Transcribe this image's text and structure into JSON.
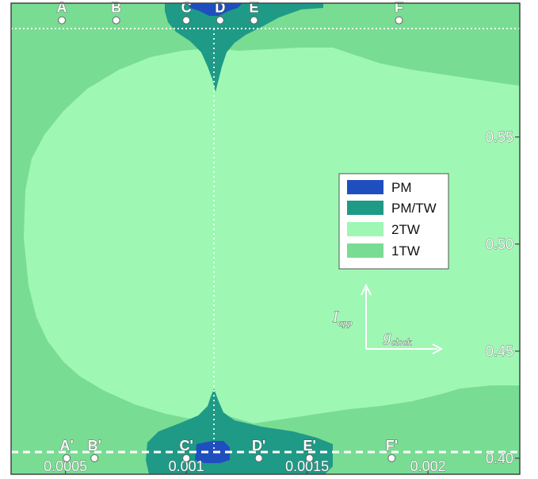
{
  "chart_data": {
    "type": "heatmap",
    "title": "",
    "xlabel": "",
    "ylabel": "",
    "xlim": [
      0.000275,
      0.00238
    ],
    "ylim": [
      0.3925,
      0.6125
    ],
    "x_ticks": [
      {
        "value": 0.0005,
        "label": "0.0005"
      },
      {
        "value": 0.001,
        "label": "0.001"
      },
      {
        "value": 0.0015,
        "label": "0.0015"
      },
      {
        "value": 0.002,
        "label": "0.002"
      }
    ],
    "y_ticks": [
      {
        "value": 0.4,
        "label": "0.40"
      },
      {
        "value": 0.45,
        "label": "0.45"
      },
      {
        "value": 0.5,
        "label": "0.50"
      },
      {
        "value": 0.55,
        "label": "0.55"
      }
    ],
    "categories": [
      "PM",
      "PM/TW",
      "2TW",
      "1TW"
    ],
    "legend": {
      "placement": "right-center",
      "entries": [
        {
          "label": "PM",
          "color": "#1f4fbf"
        },
        {
          "label": "PM/TW",
          "color": "#1f9a86"
        },
        {
          "label": "2TW",
          "color": "#9ef7b3"
        },
        {
          "label": "1TW",
          "color": "#79dc93"
        }
      ]
    },
    "regions": [
      {
        "category": "1TW",
        "description": "background region",
        "x_range": [
          0.000275,
          0.00238
        ],
        "y_range": [
          0.3925,
          0.6125
        ]
      },
      {
        "category": "2TW",
        "description": "large central region",
        "x_center": 0.00099,
        "y_range": [
          0.41,
          0.6
        ]
      },
      {
        "category": "PM/TW",
        "description": "wedge at top near C",
        "x_center": 0.001,
        "y_range": [
          0.565,
          0.6125
        ]
      },
      {
        "category": "PM/TW",
        "description": "wedge at bottom near C'",
        "x_center": 0.001,
        "y_range": [
          0.3925,
          0.44
        ]
      },
      {
        "category": "PM",
        "description": "small patch at top near C",
        "x_center": 0.001,
        "y_range": [
          0.608,
          0.6125
        ]
      },
      {
        "category": "PM",
        "description": "small patch at bottom near C'",
        "x_center": 0.001,
        "y_range": [
          0.3925,
          0.401
        ]
      }
    ],
    "lines": [
      {
        "style": "dotted",
        "orientation": "horizontal",
        "y": 0.6045
      },
      {
        "style": "dashed",
        "orientation": "horizontal",
        "y": 0.4
      },
      {
        "style": "dotted",
        "orientation": "vertical",
        "x": 0.001
      }
    ],
    "points_top": [
      {
        "label": "A",
        "x": 0.000485,
        "y": 0.6045
      },
      {
        "label": "B",
        "x": 0.00071,
        "y": 0.6045
      },
      {
        "label": "C",
        "x": 0.001,
        "y": 0.6045
      },
      {
        "label": "D",
        "x": 0.00114,
        "y": 0.6045
      },
      {
        "label": "E",
        "x": 0.00128,
        "y": 0.6045
      },
      {
        "label": "F",
        "x": 0.00188,
        "y": 0.6045
      }
    ],
    "points_bottom": [
      {
        "label": "A'",
        "x": 0.000505,
        "y": 0.4
      },
      {
        "label": "B'",
        "x": 0.00062,
        "y": 0.4
      },
      {
        "label": "C'",
        "x": 0.001,
        "y": 0.4
      },
      {
        "label": "D'",
        "x": 0.0013,
        "y": 0.4
      },
      {
        "label": "E'",
        "x": 0.00151,
        "y": 0.4
      },
      {
        "label": "F'",
        "x": 0.00185,
        "y": 0.4
      }
    ],
    "direction_axes": {
      "vertical_label": "I",
      "vertical_sub": "app",
      "horizontal_label": "g",
      "horizontal_sub": "clock"
    }
  }
}
